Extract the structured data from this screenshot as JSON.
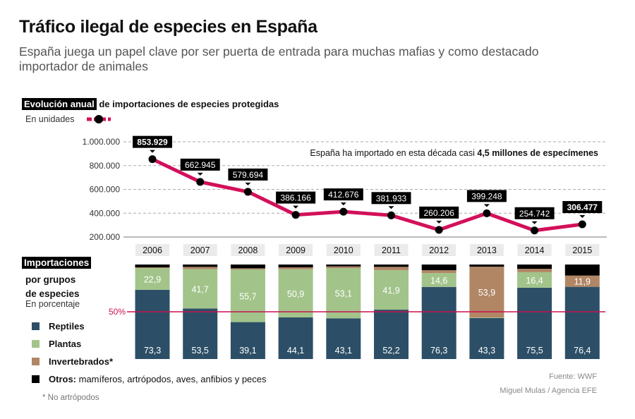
{
  "header": {
    "title": "Tráfico ilegal de especies en España",
    "subtitle": "España juega un papel clave por ser puerta de entrada para muchas mafias y como destacado importador de animales"
  },
  "colors": {
    "line": "#d3105a",
    "marker": "#000000",
    "reptiles": "#2c4f67",
    "plantas": "#a2c48a",
    "invertebrados": "#b08665",
    "otros": "#000000",
    "fifty_line": "#c8104f"
  },
  "chart_data": [
    {
      "type": "line",
      "title_highlight": "Evolución anual",
      "title_rest": "de importaciones de especies protegidas",
      "unit_label": "En unidades",
      "annotation_pre": "España ha importado en esta década casi ",
      "annotation_bold": "4,5 millones de especímenes",
      "categories": [
        "2006",
        "2007",
        "2008",
        "2009",
        "2010",
        "2011",
        "2012",
        "2013",
        "2014",
        "2015"
      ],
      "values": [
        853929,
        662945,
        579694,
        386166,
        412676,
        381933,
        260206,
        399248,
        254742,
        306477
      ],
      "value_labels": [
        "853.929",
        "662.945",
        "579.694",
        "386.166",
        "412.676",
        "381.933",
        "260.206",
        "399.248",
        "254.742",
        "306.477"
      ],
      "yticks": [
        200000,
        400000,
        600000,
        800000,
        1000000
      ],
      "ytick_labels": [
        "200.000",
        "400.000",
        "600.000",
        "800.000",
        "1.000.000"
      ],
      "ylim": [
        200000,
        1000000
      ],
      "grid": true
    },
    {
      "type": "bar",
      "stacked": true,
      "title_highlight": "Importaciones",
      "title_rest_1": "por grupos",
      "title_rest_2": "de especies",
      "unit_label": "En porcentaje",
      "reference_label": "50%",
      "reference_value": 50,
      "categories": [
        "2006",
        "2007",
        "2008",
        "2009",
        "2010",
        "2011",
        "2012",
        "2013",
        "2014",
        "2015"
      ],
      "ylim": [
        0,
        100
      ],
      "series": [
        {
          "name": "Reptiles",
          "values": [
            73.3,
            53.5,
            39.1,
            44.1,
            43.1,
            52.2,
            76.3,
            43.3,
            75.5,
            76.4
          ],
          "labels": [
            "73,3",
            "53,5",
            "39,1",
            "44,1",
            "43,1",
            "52,2",
            "76,3",
            "43,3",
            "75,5",
            "76,4"
          ]
        },
        {
          "name": "Plantas",
          "values": [
            22.9,
            41.7,
            55.7,
            50.9,
            53.1,
            41.9,
            14.6,
            0.5,
            16.4,
            0
          ],
          "labels": [
            "22,9",
            "41,7",
            "55,7",
            "50,9",
            "53,1",
            "41,9",
            "14,6",
            "",
            "16,4",
            ""
          ]
        },
        {
          "name": "Invertebrados*",
          "values": [
            0.8,
            2.3,
            1.2,
            2.0,
            1.8,
            3.4,
            3.1,
            53.9,
            3.6,
            11.9
          ],
          "labels": [
            "",
            "",
            "",
            "",
            "",
            "",
            "",
            "53,9",
            "",
            "11,9"
          ]
        },
        {
          "name": "Otros:",
          "name_rest": " mamíferos, artrópodos, aves, anfibios y peces",
          "values": [
            3.0,
            2.5,
            4.0,
            3.0,
            2.0,
            2.5,
            6.0,
            2.3,
            4.5,
            11.7
          ],
          "labels": [
            "",
            "",
            "",
            "",
            "",
            "",
            "",
            "",
            "",
            ""
          ]
        }
      ]
    }
  ],
  "footer": {
    "note": "* No artrópodos",
    "source": "Fuente: WWF",
    "credit": "Miguel Mulas / Agencia EFE"
  }
}
